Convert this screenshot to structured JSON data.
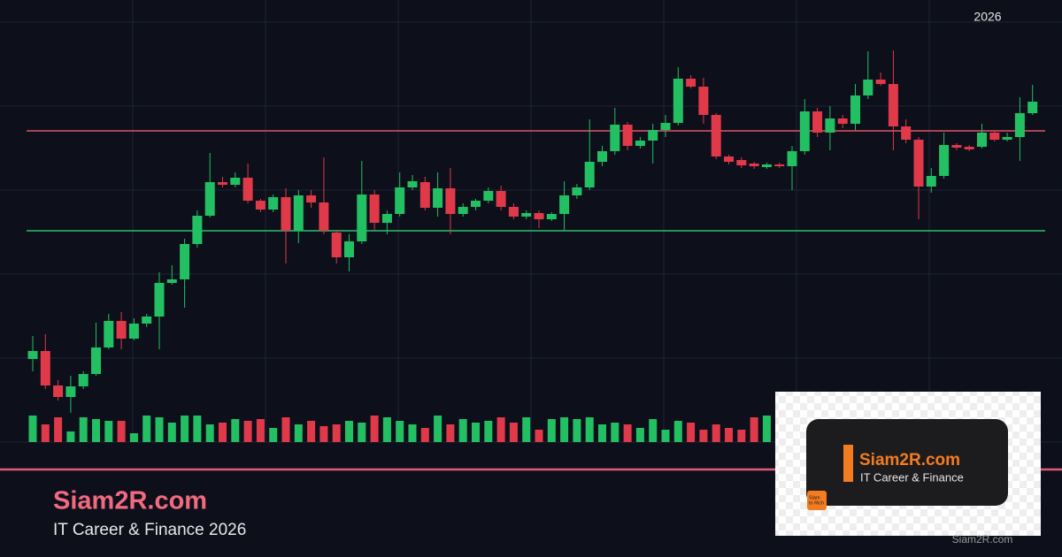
{
  "chart_data": {
    "type": "candlestick",
    "year_label": "2026",
    "ylim": [
      0,
      500
    ],
    "up_color": "#22c063",
    "down_color": "#e03a4a",
    "levels": [
      {
        "value": 352,
        "color": "#e05561"
      },
      {
        "value": 239,
        "color": "#2fbf71"
      }
    ],
    "open": [
      94,
      103,
      64,
      51,
      63,
      77,
      107,
      137,
      117,
      134,
      142,
      180,
      184,
      224,
      256,
      294,
      291,
      299,
      273,
      263,
      277,
      239,
      279,
      271,
      237,
      209,
      227,
      280,
      248,
      258,
      288,
      294,
      265,
      287,
      258,
      266,
      273,
      284,
      266,
      255,
      259,
      252,
      258,
      279,
      288,
      317,
      329,
      359,
      335,
      341,
      353,
      361,
      411,
      402,
      370,
      323,
      319,
      315,
      311,
      314,
      312,
      329,
      374,
      350,
      366,
      360,
      392,
      410,
      405,
      357,
      342,
      289,
      301,
      336,
      334,
      334,
      350,
      342,
      345,
      372
    ],
    "close": [
      103,
      64,
      51,
      63,
      77,
      107,
      137,
      117,
      134,
      142,
      180,
      184,
      224,
      256,
      294,
      291,
      299,
      273,
      263,
      277,
      239,
      279,
      271,
      239,
      209,
      227,
      280,
      248,
      258,
      288,
      295,
      265,
      287,
      258,
      266,
      273,
      284,
      266,
      255,
      259,
      252,
      258,
      279,
      288,
      317,
      329,
      359,
      335,
      341,
      353,
      361,
      411,
      402,
      370,
      323,
      317,
      313,
      312,
      314,
      312,
      329,
      374,
      350,
      366,
      360,
      392,
      410,
      405,
      357,
      342,
      289,
      301,
      336,
      333,
      331,
      350,
      342,
      345,
      372,
      385
    ],
    "high": [
      120,
      122,
      70,
      75,
      80,
      135,
      145,
      147,
      140,
      145,
      192,
      200,
      230,
      262,
      327,
      300,
      305,
      315,
      275,
      280,
      287,
      285,
      285,
      322,
      240,
      235,
      318,
      285,
      262,
      305,
      302,
      300,
      305,
      310,
      270,
      275,
      288,
      290,
      270,
      262,
      262,
      260,
      295,
      292,
      365,
      335,
      378,
      362,
      345,
      360,
      370,
      424,
      415,
      412,
      372,
      325,
      322,
      317,
      316,
      316,
      335,
      388,
      378,
      380,
      370,
      405,
      442,
      418,
      443,
      365,
      345,
      310,
      350,
      338,
      336,
      360,
      352,
      350,
      390,
      404
    ],
    "low": [
      80,
      60,
      47,
      33,
      60,
      75,
      105,
      105,
      115,
      130,
      105,
      178,
      152,
      220,
      254,
      288,
      288,
      270,
      260,
      260,
      202,
      225,
      265,
      235,
      202,
      193,
      224,
      240,
      235,
      255,
      285,
      262,
      255,
      235,
      255,
      262,
      270,
      262,
      252,
      252,
      242,
      250,
      240,
      275,
      285,
      312,
      325,
      330,
      332,
      315,
      345,
      358,
      400,
      360,
      320,
      314,
      310,
      309,
      309,
      310,
      285,
      325,
      345,
      330,
      355,
      353,
      388,
      403,
      330,
      338,
      252,
      282,
      298,
      330,
      329,
      332,
      340,
      340,
      318,
      370
    ],
    "volume": [
      30,
      20,
      28,
      12,
      28,
      26,
      24,
      24,
      10,
      30,
      28,
      22,
      30,
      30,
      20,
      22,
      26,
      24,
      26,
      16,
      28,
      20,
      24,
      18,
      20,
      24,
      22,
      30,
      28,
      24,
      20,
      16,
      30,
      20,
      26,
      22,
      24,
      28,
      22,
      28,
      14,
      26,
      28,
      26,
      28,
      20,
      22,
      20,
      16,
      26,
      14,
      24,
      22,
      14,
      20,
      16,
      14,
      28,
      30,
      14,
      20,
      24,
      22,
      18,
      26,
      20,
      24,
      28,
      22,
      26,
      20,
      18,
      24,
      22,
      26,
      24,
      20,
      22,
      26,
      24
    ]
  },
  "branding": {
    "title": "Siam2R.com",
    "subtitle": "IT Career & Finance 2026",
    "logo_name": "Siam2R.com",
    "logo_tagline": "IT Career & Finance",
    "icon_line1": "Siam",
    "icon_line2": "to Rich",
    "watermark": "Siam2R.com"
  }
}
